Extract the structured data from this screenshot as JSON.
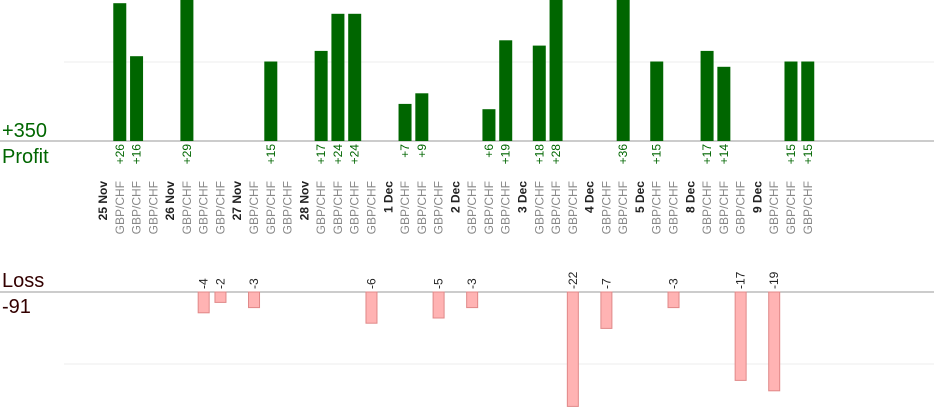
{
  "chart_data": {
    "type": "bar",
    "profit_total": "+350",
    "profit_label": "Profit",
    "loss_label": "Loss",
    "loss_total": "-91",
    "pair_label": "GBP/CHF",
    "colors": {
      "profit": "#006600",
      "loss": "#ffb3b3",
      "loss_stroke": "#e08888",
      "axis": "#999999",
      "grid": "#eeeeee"
    },
    "groups": [
      {
        "date": "25 Nov",
        "trades": [
          26,
          16,
          null
        ]
      },
      {
        "date": "26 Nov",
        "trades": [
          29,
          -4,
          -2
        ]
      },
      {
        "date": "27 Nov",
        "trades": [
          -3,
          15,
          null
        ]
      },
      {
        "date": "28 Nov",
        "trades": [
          17,
          24,
          24,
          -6
        ]
      },
      {
        "date": "1 Dec",
        "trades": [
          7,
          9,
          -5
        ]
      },
      {
        "date": "2 Dec",
        "trades": [
          -3,
          6,
          19
        ]
      },
      {
        "date": "3 Dec",
        "trades": [
          18,
          28,
          -22
        ]
      },
      {
        "date": "4 Dec",
        "trades": [
          -7,
          36
        ]
      },
      {
        "date": "5 Dec",
        "trades": [
          15,
          -3
        ]
      },
      {
        "date": "8 Dec",
        "trades": [
          17,
          14,
          -17
        ]
      },
      {
        "date": "9 Dec",
        "trades": [
          -19,
          15,
          15
        ]
      }
    ]
  }
}
